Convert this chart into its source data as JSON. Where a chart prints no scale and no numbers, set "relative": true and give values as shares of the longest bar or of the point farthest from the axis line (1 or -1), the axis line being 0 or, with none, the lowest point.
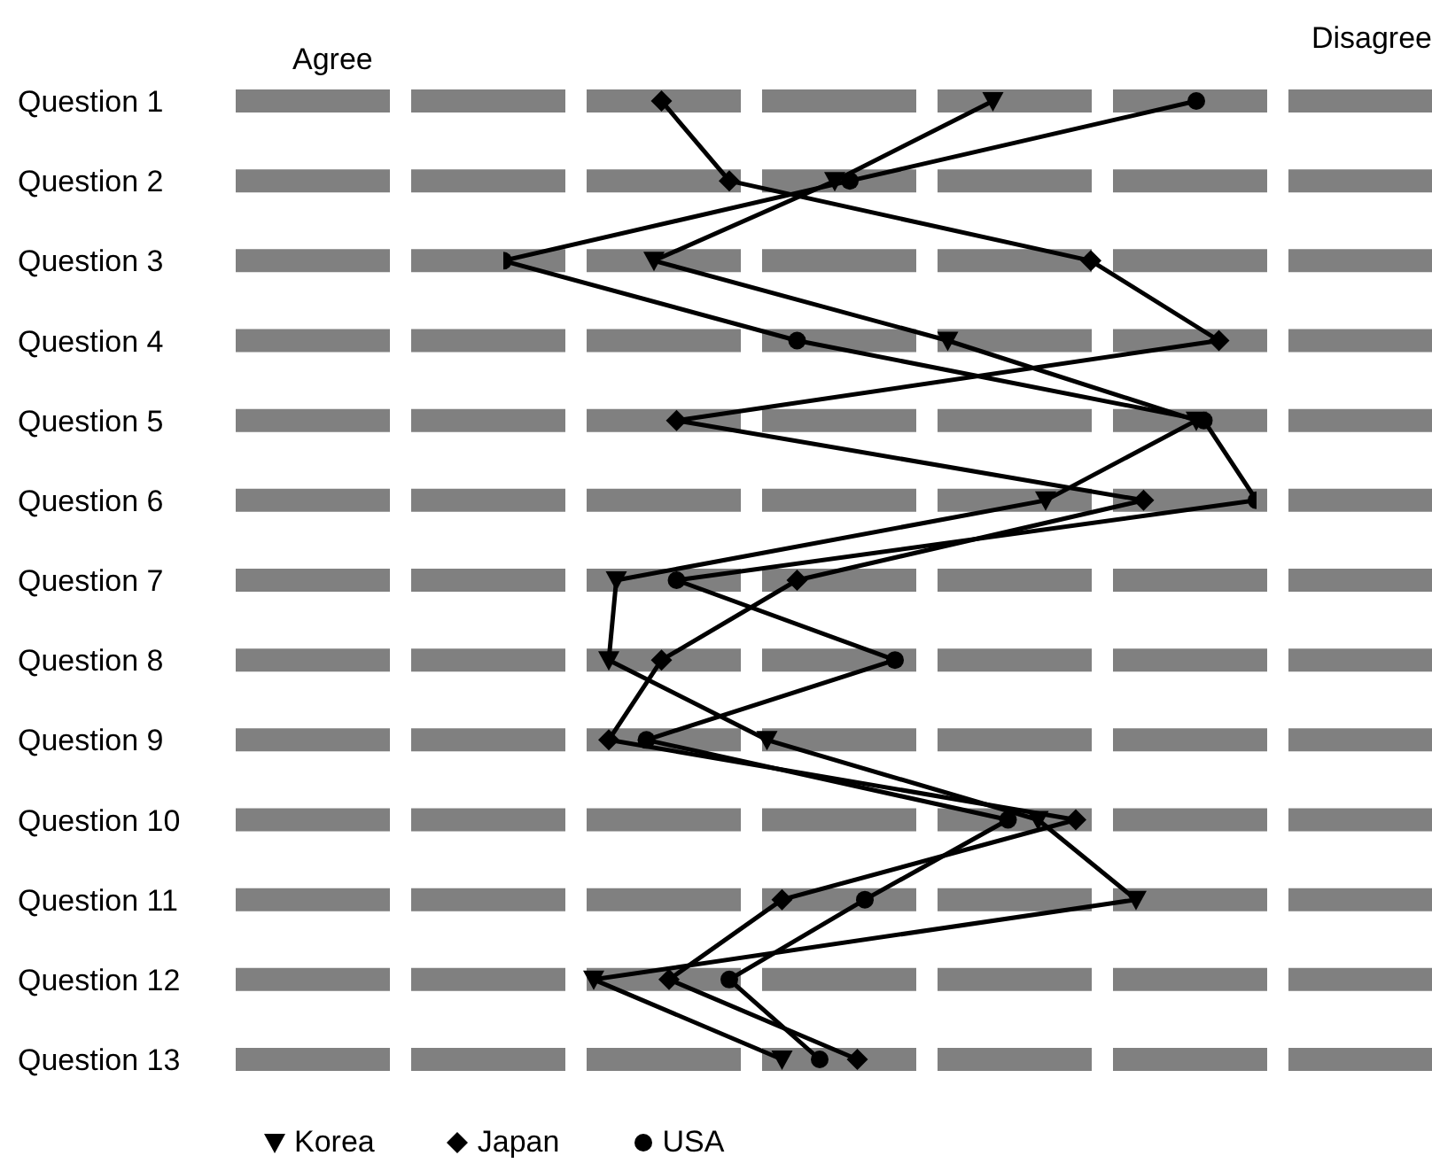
{
  "chart_data": {
    "type": "line",
    "orientation": "horizontal",
    "relative": true,
    "categories": [
      "Question 1",
      "Question 2",
      "Question 3",
      "Question 4",
      "Question 5",
      "Question 6",
      "Question 7",
      "Question 8",
      "Question 9",
      "Question 10",
      "Question 11",
      "Question 12",
      "Question 13"
    ],
    "series": [
      {
        "name": "Korea",
        "color": "#000000",
        "marker": "triangle",
        "values": [
          0.65,
          0.44,
          0.2,
          0.59,
          0.92,
          0.72,
          0.15,
          0.14,
          0.35,
          0.71,
          0.84,
          0.12,
          0.37
        ]
      },
      {
        "name": "Japan",
        "color": "#000000",
        "marker": "diamond",
        "values": [
          0.21,
          0.3,
          0.78,
          0.95,
          0.23,
          0.85,
          0.39,
          0.21,
          0.14,
          0.76,
          0.37,
          0.22,
          0.47
        ]
      },
      {
        "name": "USA",
        "color": "#000000",
        "marker": "circle",
        "values": [
          0.92,
          0.46,
          0,
          0.39,
          0.93,
          1,
          0.23,
          0.52,
          0.19,
          0.67,
          0.48,
          0.3,
          0.42
        ]
      }
    ],
    "annotations": [
      "Agree",
      "Disagree"
    ],
    "grid": "y",
    "legend": "bottom",
    "line_style": "solid"
  }
}
